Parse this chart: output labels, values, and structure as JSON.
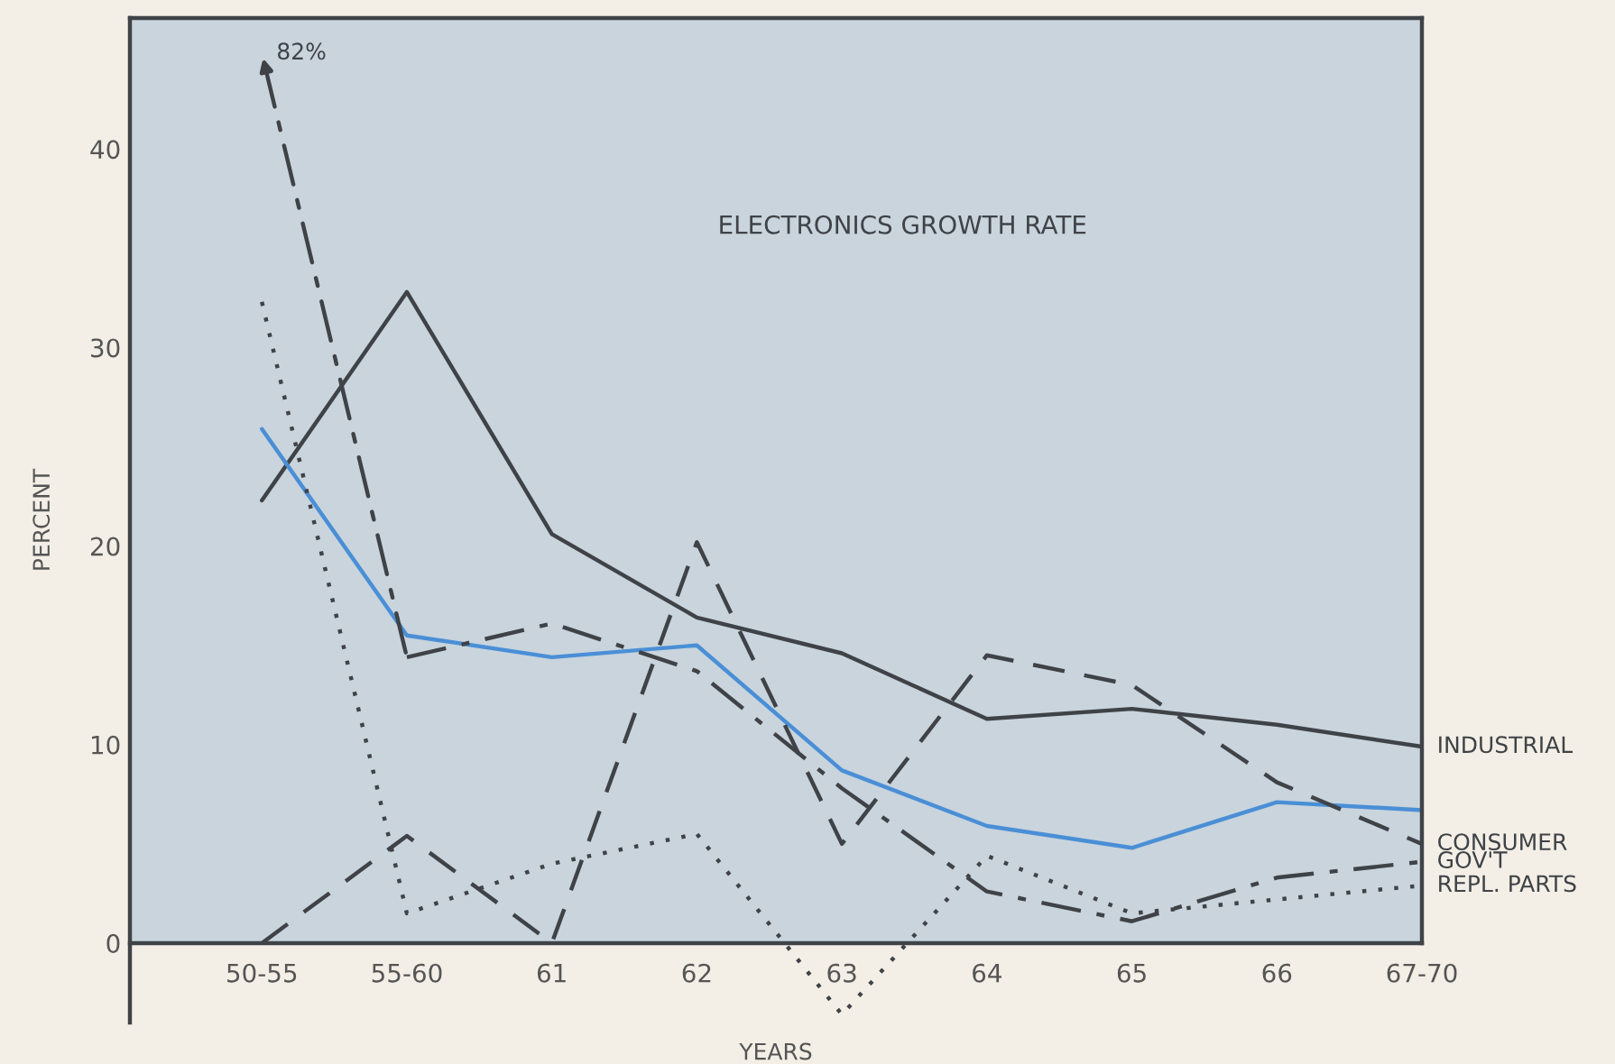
{
  "chart_data": {
    "type": "line",
    "title": "ELECTRONICS GROWTH RATE",
    "xlabel": "YEARS",
    "ylabel": "PERCENT",
    "categories": [
      "50-55",
      "55-60",
      "61",
      "62",
      "63",
      "64",
      "65",
      "66",
      "67-70"
    ],
    "ylim": [
      -4,
      46.6
    ],
    "yticks": [
      0,
      10,
      20,
      30,
      40
    ],
    "grid": false,
    "legend": false,
    "annotations": [
      "82%"
    ],
    "series": [
      {
        "name": "INDUSTRIAL",
        "color": "#3f4347",
        "line_style": "solid",
        "values": [
          22.3,
          32.8,
          20.6,
          16.4,
          14.6,
          11.3,
          11.8,
          11,
          9.9
        ]
      },
      {
        "color": "#4a8fd6",
        "line_style": "solid",
        "values": [
          25.9,
          15.5,
          14.4,
          15,
          8.7,
          5.9,
          4.8,
          7.1,
          6.7
        ]
      },
      {
        "name": "CONSUMER",
        "color": "#3f4347",
        "line_style": "dashed",
        "values": [
          0,
          5.4,
          0,
          20.2,
          5,
          14.5,
          13,
          8.1,
          5
        ]
      },
      {
        "name": "GOV'T",
        "color": "#3f4347",
        "line_style": "dashdot",
        "values": [
          null,
          14.4,
          16.1,
          13.7,
          7.8,
          2.6,
          1.1,
          3.3,
          4.1
        ]
      },
      {
        "name": "REPL. PARTS",
        "color": "#3f4347",
        "line_style": "dotted",
        "values": [
          32.3,
          1.5,
          4,
          5.5,
          -3.6,
          4.4,
          1.5,
          2.2,
          2.9
        ]
      }
    ]
  }
}
